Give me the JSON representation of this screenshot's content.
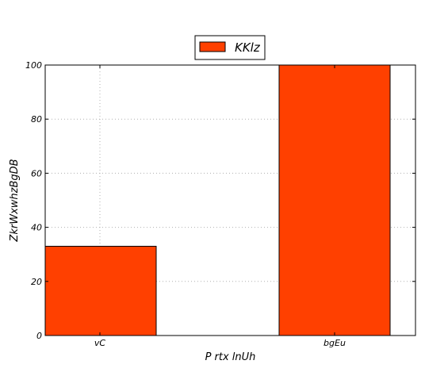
{
  "chart_data": {
    "type": "bar",
    "categories": [
      "vC",
      "bgEu"
    ],
    "series": [
      {
        "name": "KKlz",
        "values": [
          33,
          100
        ],
        "color": "#ff4000"
      }
    ],
    "xlabel": "P rtx lnUh",
    "ylabel": "ZkrWxwhzBgDB",
    "ylim": [
      0,
      100
    ],
    "yticks": [
      0,
      20,
      40,
      60,
      80,
      100
    ],
    "grid": true,
    "legend_position": "top-center"
  }
}
